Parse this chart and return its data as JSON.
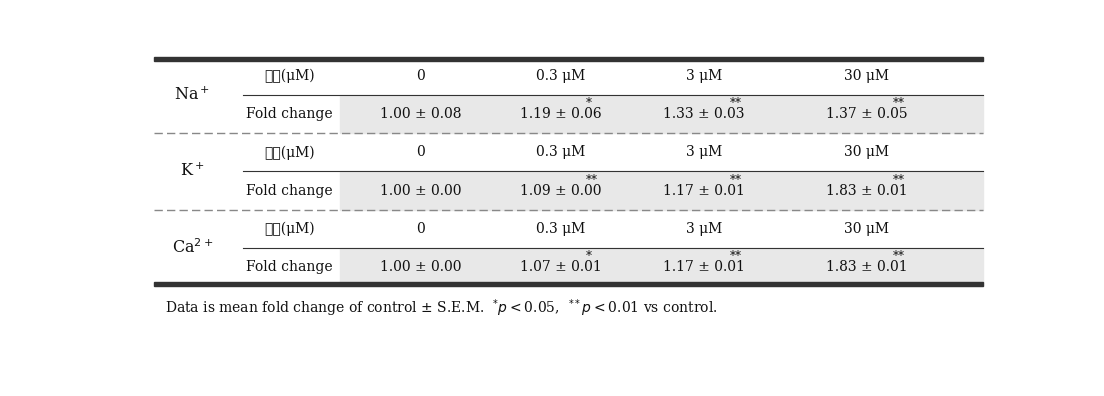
{
  "rows": [
    {
      "ion": "Na$^+$",
      "conc_row": [
        "0",
        "0.3 μM",
        "3 μM",
        "30 μM"
      ],
      "fold_row": [
        "1.00 ± 0.08",
        "1.19 ± 0.06",
        "1.33 ± 0.03",
        "1.37 ± 0.05"
      ],
      "stars": [
        "",
        "*",
        "**",
        "**"
      ]
    },
    {
      "ion": "K$^+$",
      "conc_row": [
        "0",
        "0.3 μM",
        "3 μM",
        "30 μM"
      ],
      "fold_row": [
        "1.00 ± 0.00",
        "1.09 ± 0.00",
        "1.17 ± 0.01",
        "1.83 ± 0.01"
      ],
      "stars": [
        "",
        "**",
        "**",
        "**"
      ]
    },
    {
      "ion": "Ca$^{2+}$",
      "conc_row": [
        "0",
        "0.3 μM",
        "3 μM",
        "30 μM"
      ],
      "fold_row": [
        "1.00 ± 0.00",
        "1.07 ± 0.01",
        "1.17 ± 0.01",
        "1.83 ± 0.01"
      ],
      "stars": [
        "",
        "*",
        "**",
        "**"
      ]
    }
  ],
  "conc_label": "농도(μM)",
  "fold_label": "Fold change",
  "footnote_plain": "Data is mean fold change of control ± S.E.M.  ",
  "footnote_star1": "*",
  "footnote_p1": "p<0.05,  ",
  "footnote_star2": "**",
  "footnote_p2": "p<0.01 vs control.",
  "bg_shade": "#e8e8e8",
  "line_dark": "#333333",
  "line_mid": "#888888",
  "font_color": "#111111"
}
